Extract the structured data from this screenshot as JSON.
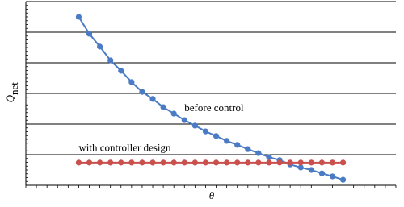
{
  "chart_data": {
    "type": "line",
    "xlabel": "θ",
    "ylabel": "Q",
    "ylabel_subscript": "net",
    "annotations": [
      {
        "text": "before control",
        "x": 15,
        "y": 2.5
      },
      {
        "text": "with controller design",
        "x": 5,
        "y": 1.2
      }
    ],
    "x": [
      5,
      6,
      7,
      8,
      9,
      10,
      11,
      12,
      13,
      14,
      15,
      16,
      17,
      18,
      19,
      20,
      21,
      22,
      23,
      24,
      25,
      26,
      27,
      28,
      29,
      30
    ],
    "series": [
      {
        "name": "before control",
        "color": "#4a7bc4",
        "values": [
          5.5,
          4.95,
          4.53,
          4.08,
          3.74,
          3.37,
          3.05,
          2.82,
          2.55,
          2.34,
          2.13,
          1.95,
          1.76,
          1.61,
          1.45,
          1.32,
          1.18,
          1.05,
          0.92,
          0.82,
          0.68,
          0.58,
          0.5,
          0.39,
          0.29,
          0.18
        ]
      },
      {
        "name": "with controller design",
        "color": "#c9504d",
        "values": [
          0.74,
          0.74,
          0.74,
          0.74,
          0.74,
          0.74,
          0.74,
          0.74,
          0.74,
          0.74,
          0.74,
          0.74,
          0.74,
          0.74,
          0.74,
          0.74,
          0.74,
          0.74,
          0.74,
          0.74,
          0.74,
          0.74,
          0.74,
          0.74,
          0.74,
          0.74
        ]
      }
    ],
    "xlim": [
      0,
      35
    ],
    "ylim": [
      0,
      6
    ],
    "yticks": [
      1,
      2,
      3,
      4,
      5,
      6
    ],
    "grid": true
  }
}
